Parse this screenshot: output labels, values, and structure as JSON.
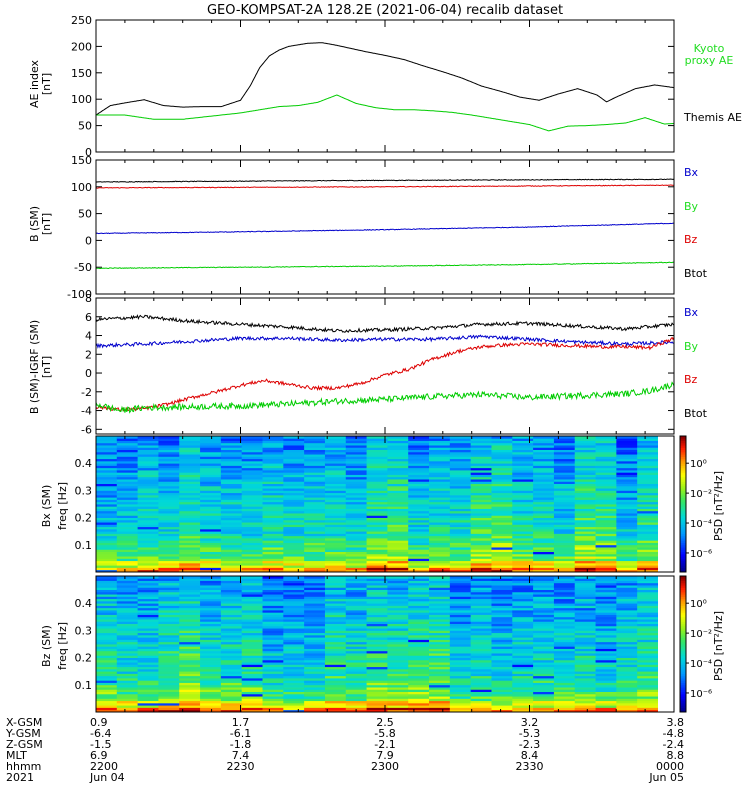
{
  "title": "GEO-KOMPSAT-2A 128.2E (2021-06-04) recalib dataset",
  "colors": {
    "black": "#000000",
    "red": "#dd0000",
    "blue": "#0000cc",
    "green": "#00cc00",
    "legend_green": "#22dd22"
  },
  "panels": {
    "ae": {
      "ylabel_line1": "AE index",
      "ylabel_line2": "[nT]",
      "yticks": [
        "0",
        "50",
        "100",
        "150",
        "200",
        "250"
      ],
      "legend": [
        "Kyoto",
        "proxy AE",
        "Themis AE"
      ]
    },
    "bsm": {
      "ylabel_line1": "B (SM)",
      "ylabel_line2": "[nT]",
      "yticks": [
        "-100",
        "-50",
        "0",
        "50",
        "100",
        "150"
      ],
      "legend": [
        "Bx",
        "By",
        "Bz",
        "Btot"
      ]
    },
    "bigrf": {
      "ylabel_line1": "B (SM)-IGRF (SM)",
      "ylabel_line2": "[nT]",
      "yticks": [
        "-6",
        "-4",
        "-2",
        "0",
        "2",
        "4",
        "6",
        "8"
      ],
      "legend": [
        "Bx",
        "By",
        "Bz",
        "Btot"
      ]
    },
    "spec_bx": {
      "ylabel_line1": "Bx (SM)",
      "ylabel_line2": "freq [Hz]",
      "yticks": [
        "0.1",
        "0.2",
        "0.3",
        "0.4"
      ],
      "cbar_label": "PSD [nT²/Hz]",
      "cbar_ticks": [
        "10⁰",
        "10⁻²",
        "10⁻⁴",
        "10⁻⁶"
      ]
    },
    "spec_bz": {
      "ylabel_line1": "Bz (SM)",
      "ylabel_line2": "freq [Hz]",
      "yticks": [
        "0.1",
        "0.2",
        "0.3",
        "0.4"
      ],
      "cbar_label": "PSD [nT²/Hz]",
      "cbar_ticks": [
        "10⁰",
        "10⁻²",
        "10⁻⁴",
        "10⁻⁶"
      ]
    }
  },
  "xaxis": {
    "row_labels": [
      "X-GSM",
      "Y-GSM",
      "Z-GSM",
      "MLT",
      "hhmm",
      "2021"
    ],
    "columns": [
      {
        "x_gsm": "0.9",
        "y_gsm": "-6.4",
        "z_gsm": "-1.5",
        "mlt": "6.9",
        "hhmm": "2200",
        "date": "Jun 04"
      },
      {
        "x_gsm": "1.7",
        "y_gsm": "-6.1",
        "z_gsm": "-1.8",
        "mlt": "7.4",
        "hhmm": "2230",
        "date": ""
      },
      {
        "x_gsm": "2.5",
        "y_gsm": "-5.8",
        "z_gsm": "-2.1",
        "mlt": "7.9",
        "hhmm": "2300",
        "date": ""
      },
      {
        "x_gsm": "3.2",
        "y_gsm": "-5.3",
        "z_gsm": "-2.3",
        "mlt": "8.4",
        "hhmm": "2330",
        "date": ""
      },
      {
        "x_gsm": "3.8",
        "y_gsm": "-4.8",
        "z_gsm": "-2.4",
        "mlt": "8.8",
        "hhmm": "0000",
        "date": "Jun 05"
      }
    ]
  },
  "chart_data": [
    {
      "type": "line",
      "panel": "ae",
      "xunit": "minutes after 22:00 UT",
      "xlim": [
        0,
        120
      ],
      "ylim": [
        0,
        250
      ],
      "series": [
        {
          "name": "Themis AE",
          "color": "#000000",
          "x": [
            0,
            3,
            6,
            10,
            14,
            18,
            22,
            26,
            30,
            32,
            34,
            36,
            38,
            40,
            42,
            44,
            47,
            50,
            53,
            56,
            60,
            64,
            68,
            72,
            76,
            80,
            84,
            88,
            92,
            96,
            100,
            104,
            106,
            108,
            112,
            116,
            120
          ],
          "y": [
            70,
            88,
            93,
            99,
            88,
            85,
            86,
            86,
            98,
            125,
            160,
            182,
            193,
            200,
            203,
            206,
            207,
            202,
            196,
            190,
            183,
            175,
            163,
            152,
            140,
            125,
            115,
            104,
            98,
            110,
            120,
            108,
            95,
            104,
            120,
            127,
            122
          ]
        },
        {
          "name": "Kyoto proxy AE",
          "color": "#00cc00",
          "x": [
            0,
            6,
            12,
            18,
            24,
            30,
            34,
            38,
            42,
            46,
            50,
            54,
            58,
            62,
            66,
            70,
            74,
            78,
            82,
            86,
            90,
            94,
            98,
            102,
            106,
            110,
            114,
            118,
            120
          ],
          "y": [
            70,
            70,
            62,
            62,
            68,
            74,
            80,
            86,
            88,
            94,
            108,
            92,
            84,
            80,
            80,
            78,
            75,
            70,
            64,
            58,
            52,
            40,
            49,
            50,
            52,
            55,
            65,
            53,
            54
          ]
        }
      ]
    },
    {
      "type": "line",
      "panel": "bsm",
      "xunit": "minutes after 22:00 UT",
      "xlim": [
        0,
        120
      ],
      "ylim": [
        -100,
        150
      ],
      "series": [
        {
          "name": "Btot",
          "color": "#000000",
          "x": [
            0,
            60,
            120
          ],
          "y": [
            109,
            112,
            114
          ]
        },
        {
          "name": "Bz",
          "color": "#dd0000",
          "x": [
            0,
            60,
            120
          ],
          "y": [
            98,
            100,
            103
          ]
        },
        {
          "name": "By",
          "color": "#0000cc",
          "x": [
            0,
            30,
            60,
            90,
            120
          ],
          "y": [
            13,
            16,
            20,
            25,
            32
          ]
        },
        {
          "name": "Bx",
          "color": "#00cc00",
          "x": [
            0,
            30,
            60,
            90,
            120
          ],
          "y": [
            -52,
            -50,
            -48,
            -45,
            -41
          ]
        }
      ]
    },
    {
      "type": "line",
      "panel": "bigrf",
      "xunit": "minutes after 22:00 UT",
      "xlim": [
        0,
        120
      ],
      "ylim": [
        -6.5,
        8
      ],
      "series": [
        {
          "name": "Btot",
          "color": "#000000",
          "x": [
            0,
            10,
            20,
            30,
            40,
            50,
            60,
            70,
            80,
            90,
            100,
            110,
            120
          ],
          "y": [
            5.7,
            6.0,
            5.5,
            5.2,
            4.9,
            4.5,
            4.6,
            4.8,
            5.2,
            5.3,
            5.0,
            4.7,
            5.2
          ]
        },
        {
          "name": "By",
          "color": "#0000cc",
          "x": [
            0,
            10,
            20,
            30,
            40,
            50,
            60,
            70,
            80,
            90,
            100,
            110,
            120
          ],
          "y": [
            2.9,
            3.1,
            3.4,
            3.7,
            3.7,
            3.5,
            3.6,
            3.6,
            3.9,
            3.6,
            3.3,
            3.1,
            3.3
          ]
        },
        {
          "name": "Bz",
          "color": "#dd0000",
          "x": [
            0,
            5,
            10,
            15,
            20,
            25,
            30,
            35,
            40,
            45,
            50,
            55,
            60,
            65,
            70,
            75,
            80,
            85,
            90,
            95,
            100,
            105,
            110,
            115,
            120
          ],
          "y": [
            -3.6,
            -3.9,
            -3.8,
            -3.3,
            -2.6,
            -2.0,
            -1.3,
            -0.8,
            -1.2,
            -1.6,
            -1.6,
            -1.1,
            -0.2,
            0.4,
            1.5,
            2.3,
            2.8,
            3.0,
            3.1,
            3.0,
            2.9,
            2.8,
            2.8,
            2.7,
            3.7
          ]
        },
        {
          "name": "Bx",
          "color": "#00cc00",
          "x": [
            0,
            5,
            10,
            20,
            30,
            40,
            50,
            60,
            70,
            80,
            90,
            100,
            110,
            115,
            120
          ],
          "y": [
            -3.3,
            -4.0,
            -3.7,
            -3.6,
            -3.5,
            -3.3,
            -3.0,
            -2.8,
            -2.5,
            -2.3,
            -2.6,
            -2.4,
            -2.2,
            -1.9,
            -1.2
          ]
        }
      ]
    },
    {
      "type": "heatmap",
      "panel": "spec_bx",
      "xunit": "minutes after 22:00 UT",
      "xlim": [
        0,
        120
      ],
      "ylim": [
        0,
        0.5
      ],
      "zscale": "log",
      "zlim": [
        "10⁻⁶",
        "10¹"
      ]
    },
    {
      "type": "heatmap",
      "panel": "spec_bz",
      "xunit": "minutes after 22:00 UT",
      "xlim": [
        0,
        120
      ],
      "ylim": [
        0,
        0.5
      ],
      "zscale": "log",
      "zlim": [
        "10⁻⁶",
        "10¹"
      ]
    }
  ]
}
